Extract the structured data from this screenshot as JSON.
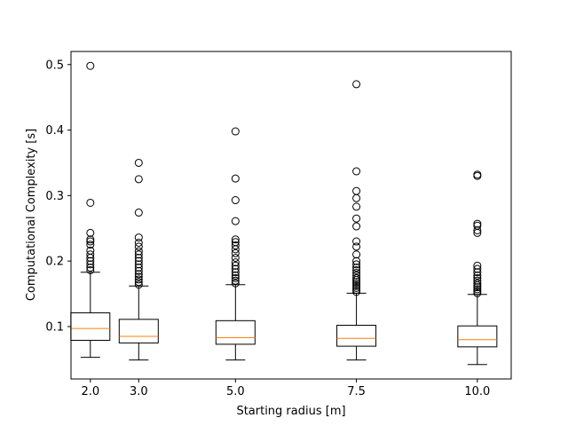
{
  "chart_data": {
    "type": "boxplot",
    "title": "",
    "xlabel": "Starting radius [m]",
    "ylabel": "Computational Complexity [s]",
    "xlim": [
      1.6,
      10.7
    ],
    "ylim": [
      0.02,
      0.52
    ],
    "x_ticks": [
      2.0,
      3.0,
      5.0,
      7.5,
      10.0
    ],
    "x_tick_labels": [
      "2.0",
      "3.0",
      "5.0",
      "7.5",
      "10.0"
    ],
    "y_ticks": [
      0.1,
      0.2,
      0.3,
      0.4,
      0.5
    ],
    "y_tick_labels": [
      "0.1",
      "0.2",
      "0.3",
      "0.4",
      "0.5"
    ],
    "grid": false,
    "box_color": "#000000",
    "median_color": "#ff7f0e",
    "series": [
      {
        "x": 2.0,
        "whisker_low": 0.053,
        "q1": 0.079,
        "median": 0.097,
        "q3": 0.121,
        "whisker_high": 0.183,
        "fliers": [
          0.186,
          0.19,
          0.195,
          0.2,
          0.205,
          0.21,
          0.216,
          0.225,
          0.23,
          0.233,
          0.243,
          0.289,
          0.498
        ]
      },
      {
        "x": 3.0,
        "whisker_low": 0.049,
        "q1": 0.075,
        "median": 0.085,
        "q3": 0.111,
        "whisker_high": 0.162,
        "fliers": [
          0.164,
          0.168,
          0.172,
          0.176,
          0.18,
          0.185,
          0.19,
          0.195,
          0.2,
          0.205,
          0.21,
          0.215,
          0.222,
          0.228,
          0.236,
          0.274,
          0.325,
          0.35
        ]
      },
      {
        "x": 5.0,
        "whisker_low": 0.049,
        "q1": 0.073,
        "median": 0.083,
        "q3": 0.109,
        "whisker_high": 0.164,
        "fliers": [
          0.166,
          0.17,
          0.174,
          0.178,
          0.183,
          0.188,
          0.193,
          0.198,
          0.205,
          0.212,
          0.218,
          0.224,
          0.229,
          0.233,
          0.261,
          0.293,
          0.326,
          0.398
        ]
      },
      {
        "x": 7.5,
        "whisker_low": 0.049,
        "q1": 0.07,
        "median": 0.082,
        "q3": 0.102,
        "whisker_high": 0.151,
        "fliers": [
          0.153,
          0.156,
          0.159,
          0.162,
          0.165,
          0.168,
          0.171,
          0.174,
          0.178,
          0.182,
          0.186,
          0.19,
          0.195,
          0.2,
          0.21,
          0.222,
          0.23,
          0.253,
          0.265,
          0.283,
          0.296,
          0.307,
          0.337,
          0.47
        ]
      },
      {
        "x": 10.0,
        "whisker_low": 0.042,
        "q1": 0.069,
        "median": 0.08,
        "q3": 0.101,
        "whisker_high": 0.149,
        "fliers": [
          0.151,
          0.154,
          0.157,
          0.16,
          0.163,
          0.166,
          0.17,
          0.174,
          0.178,
          0.183,
          0.188,
          0.193,
          0.243,
          0.247,
          0.254,
          0.257,
          0.33,
          0.332
        ]
      }
    ]
  }
}
